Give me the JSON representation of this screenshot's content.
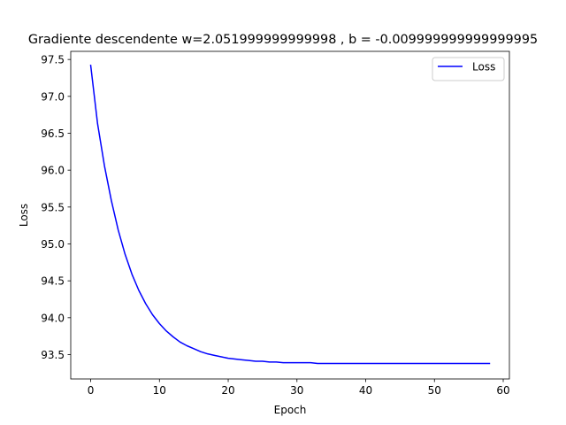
{
  "chart_data": {
    "type": "line",
    "title": "Gradiente descendente w=2.051999999999998 , b = -0.009999999999999995",
    "xlabel": "Epoch",
    "ylabel": "Loss",
    "xlim": [
      -2.9,
      60.9
    ],
    "ylim": [
      93.17,
      97.61
    ],
    "xticks": [
      0,
      10,
      20,
      30,
      40,
      50,
      60
    ],
    "xtick_labels": [
      "0",
      "10",
      "20",
      "30",
      "40",
      "50",
      "60"
    ],
    "yticks": [
      93.5,
      94.0,
      94.5,
      95.0,
      95.5,
      96.0,
      96.5,
      97.0,
      97.5
    ],
    "ytick_labels": [
      "93.5",
      "94.0",
      "94.5",
      "95.0",
      "95.5",
      "96.0",
      "96.5",
      "97.0",
      "97.5"
    ],
    "grid": false,
    "legend_position": "upper right",
    "series": [
      {
        "name": "Loss",
        "color": "#0000ff",
        "x": [
          0,
          1,
          2,
          3,
          4,
          5,
          6,
          7,
          8,
          9,
          10,
          11,
          12,
          13,
          14,
          15,
          16,
          17,
          18,
          19,
          20,
          21,
          22,
          23,
          24,
          25,
          26,
          27,
          28,
          29,
          30,
          31,
          32,
          33,
          34,
          35,
          36,
          37,
          38,
          39,
          40,
          41,
          42,
          43,
          44,
          45,
          46,
          47,
          48,
          49,
          50,
          51,
          52,
          53,
          54,
          55,
          56,
          57,
          58
        ],
        "y": [
          97.42,
          96.63,
          96.06,
          95.59,
          95.19,
          94.86,
          94.59,
          94.37,
          94.19,
          94.04,
          93.92,
          93.82,
          93.74,
          93.67,
          93.62,
          93.58,
          93.54,
          93.51,
          93.49,
          93.47,
          93.45,
          93.44,
          93.43,
          93.42,
          93.41,
          93.41,
          93.4,
          93.4,
          93.39,
          93.39,
          93.39,
          93.39,
          93.39,
          93.38,
          93.38,
          93.38,
          93.38,
          93.38,
          93.38,
          93.38,
          93.38,
          93.38,
          93.38,
          93.38,
          93.38,
          93.38,
          93.38,
          93.38,
          93.38,
          93.38,
          93.38,
          93.38,
          93.38,
          93.38,
          93.38,
          93.38,
          93.38,
          93.38,
          93.38
        ]
      }
    ]
  }
}
